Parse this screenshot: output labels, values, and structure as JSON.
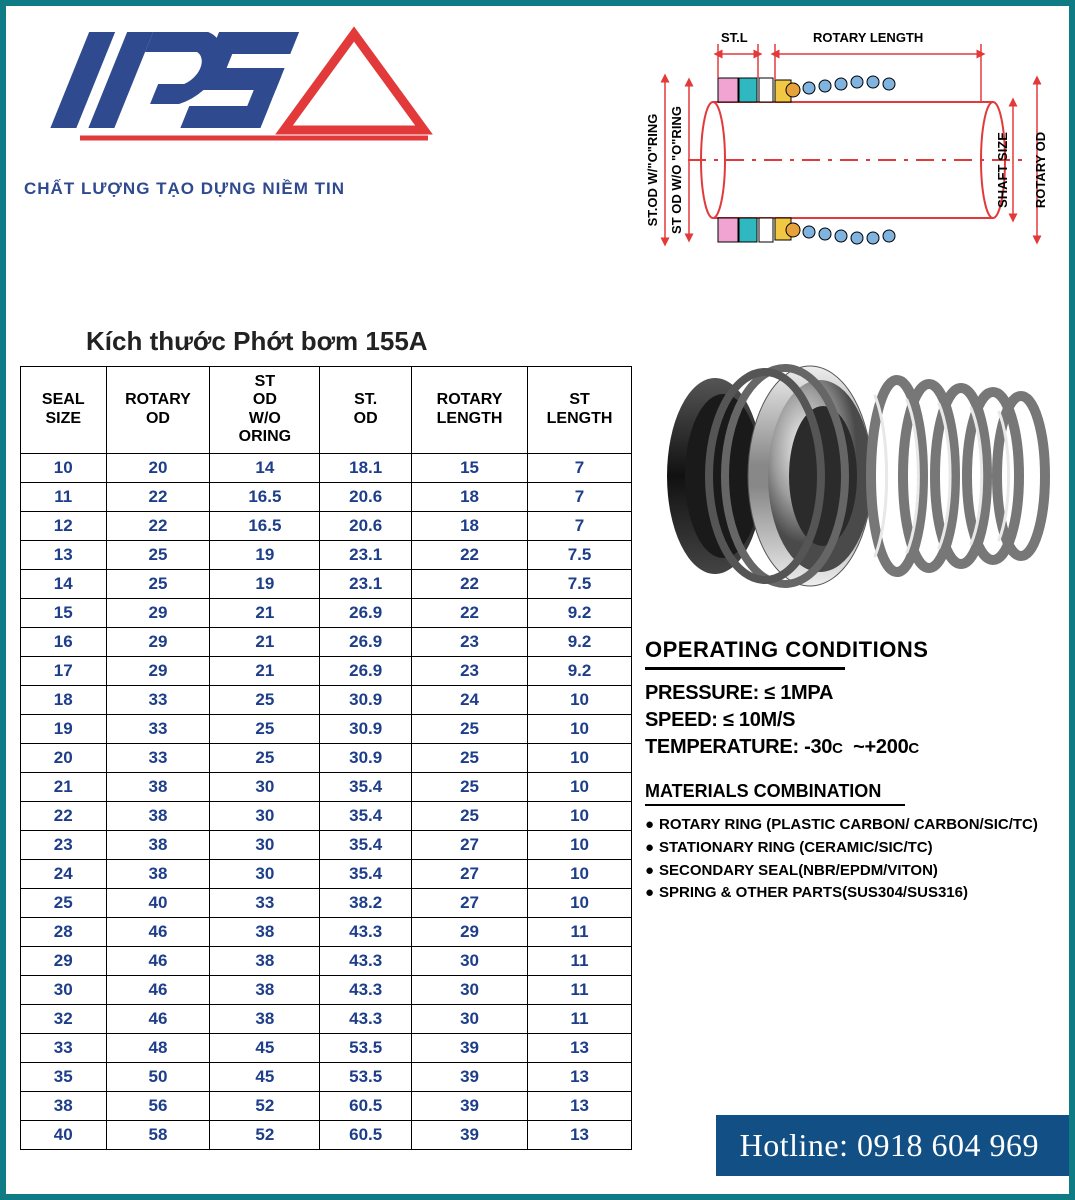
{
  "colors": {
    "page_border": "#0f7b84",
    "logo_blue": "#2f4a8f",
    "logo_red": "#e23a3a",
    "table_text": "#1e3e8a",
    "hotline_bg": "#124f85",
    "diagram_pink": "#f1a4d1",
    "diagram_blue": "#7fb4e0",
    "diagram_cyan": "#2fb8bf",
    "diagram_yellow": "#f2c744",
    "diagram_orange": "#e8a23c"
  },
  "logo": {
    "text": "IPS",
    "tagline": "CHẤT LƯỢNG TẠO DỰNG NIỀM TIN"
  },
  "diagram": {
    "labels": {
      "st_l": "ST.L",
      "rotary_length": "ROTARY LENGTH",
      "st_od_wo_oring": "ST.OD W/\"O\"RING",
      "st_od_wo_oring2": "ST OD W/O \"O\"RING",
      "shaft_size": "SHAFT SIZE",
      "rotary_od": "ROTARY OD"
    }
  },
  "table": {
    "title": "Kích thước Phớt bơm 155A",
    "columns": [
      "SEAL SIZE",
      "ROTARY OD",
      "ST OD W/O ORING",
      "ST. OD",
      "ROTARY LENGTH",
      "ST LENGTH"
    ],
    "column_widths_pct": [
      14,
      17,
      18,
      15,
      19,
      17
    ],
    "rows": [
      [
        "10",
        "20",
        "14",
        "18.1",
        "15",
        "7"
      ],
      [
        "11",
        "22",
        "16.5",
        "20.6",
        "18",
        "7"
      ],
      [
        "12",
        "22",
        "16.5",
        "20.6",
        "18",
        "7"
      ],
      [
        "13",
        "25",
        "19",
        "23.1",
        "22",
        "7.5"
      ],
      [
        "14",
        "25",
        "19",
        "23.1",
        "22",
        "7.5"
      ],
      [
        "15",
        "29",
        "21",
        "26.9",
        "22",
        "9.2"
      ],
      [
        "16",
        "29",
        "21",
        "26.9",
        "23",
        "9.2"
      ],
      [
        "17",
        "29",
        "21",
        "26.9",
        "23",
        "9.2"
      ],
      [
        "18",
        "33",
        "25",
        "30.9",
        "24",
        "10"
      ],
      [
        "19",
        "33",
        "25",
        "30.9",
        "25",
        "10"
      ],
      [
        "20",
        "33",
        "25",
        "30.9",
        "25",
        "10"
      ],
      [
        "21",
        "38",
        "30",
        "35.4",
        "25",
        "10"
      ],
      [
        "22",
        "38",
        "30",
        "35.4",
        "25",
        "10"
      ],
      [
        "23",
        "38",
        "30",
        "35.4",
        "27",
        "10"
      ],
      [
        "24",
        "38",
        "30",
        "35.4",
        "27",
        "10"
      ],
      [
        "25",
        "40",
        "33",
        "38.2",
        "27",
        "10"
      ],
      [
        "28",
        "46",
        "38",
        "43.3",
        "29",
        "11"
      ],
      [
        "29",
        "46",
        "38",
        "43.3",
        "30",
        "11"
      ],
      [
        "30",
        "46",
        "38",
        "43.3",
        "30",
        "11"
      ],
      [
        "32",
        "46",
        "38",
        "43.3",
        "30",
        "11"
      ],
      [
        "33",
        "48",
        "45",
        "53.5",
        "39",
        "13"
      ],
      [
        "35",
        "50",
        "45",
        "53.5",
        "39",
        "13"
      ],
      [
        "38",
        "56",
        "52",
        "60.5",
        "39",
        "13"
      ],
      [
        "40",
        "58",
        "52",
        "60.5",
        "39",
        "13"
      ]
    ]
  },
  "operating": {
    "title": "OPERATING CONDITIONS",
    "pressure_label": "PRESSURE:",
    "pressure_value": "≤ 1MPA",
    "speed_label": "SPEED:",
    "speed_value": "≤ 10M/S",
    "temperature_label": "TEMPERATURE:",
    "temperature_value_a": "-30",
    "temperature_unit": "C",
    "temperature_sep": "~+",
    "temperature_value_b": "200"
  },
  "materials": {
    "title": "MATERIALS COMBINATION",
    "items": [
      "ROTARY RING (PLASTIC CARBON/ CARBON/SIC/TC)",
      "STATIONARY RING (CERAMIC/SIC/TC)",
      "SECONDARY SEAL(NBR/EPDM/VITON)",
      "SPRING & OTHER PARTS(SUS304/SUS316)"
    ]
  },
  "hotline": {
    "label": "Hotline:",
    "number": "0918 604 969"
  }
}
